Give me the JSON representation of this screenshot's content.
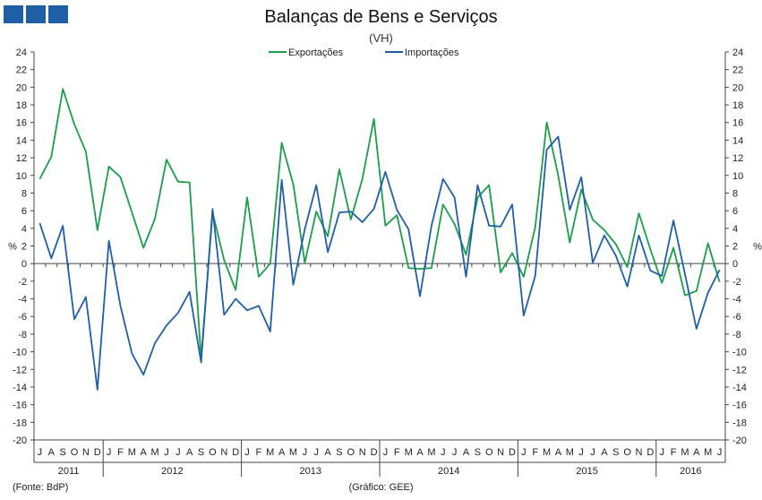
{
  "header": {
    "title": "Balanças de Bens e Serviços",
    "subtitle": "(VH)"
  },
  "logo": {
    "color": "#1f5fa6"
  },
  "footer": {
    "source": "(Fonte: BdP)",
    "chart_credit": "(Gráfico: GEE)"
  },
  "chart_data": {
    "type": "line",
    "title": "Balanças de Bens e Serviços",
    "subtitle": "(VH)",
    "ylabel_left": "%",
    "ylabel_right": "%",
    "ylim": [
      -20,
      24
    ],
    "yticks": [
      -20,
      -18,
      -16,
      -14,
      -12,
      -10,
      -8,
      -6,
      -4,
      -2,
      0,
      2,
      4,
      6,
      8,
      10,
      12,
      14,
      16,
      18,
      20,
      22,
      24
    ],
    "grid": false,
    "legend_position": "top-center",
    "x_months": [
      "J",
      "A",
      "S",
      "O",
      "N",
      "D",
      "J",
      "F",
      "M",
      "A",
      "M",
      "J",
      "J",
      "A",
      "S",
      "O",
      "N",
      "D",
      "J",
      "F",
      "M",
      "A",
      "M",
      "J",
      "J",
      "A",
      "S",
      "O",
      "N",
      "D",
      "J",
      "F",
      "M",
      "A",
      "M",
      "J",
      "J",
      "A",
      "S",
      "O",
      "N",
      "D",
      "J",
      "F",
      "M",
      "A",
      "M",
      "J",
      "J",
      "A",
      "S",
      "O",
      "N",
      "D",
      "J",
      "F",
      "M",
      "A",
      "M",
      "J"
    ],
    "year_groups": [
      {
        "label": "2011",
        "months": 6
      },
      {
        "label": "2012",
        "months": 12
      },
      {
        "label": "2013",
        "months": 12
      },
      {
        "label": "2014",
        "months": 12
      },
      {
        "label": "2015",
        "months": 12
      },
      {
        "label": "2016",
        "months": 6
      }
    ],
    "series": [
      {
        "name": "Exportações",
        "color": "#1a9e4a",
        "values": [
          9.6,
          12.1,
          19.8,
          15.8,
          12.7,
          3.8,
          11.0,
          9.8,
          5.8,
          1.8,
          5.1,
          11.8,
          9.3,
          9.2,
          -10.8,
          5.8,
          0.4,
          -3.0,
          7.5,
          -1.5,
          0.0,
          13.7,
          9.0,
          0.1,
          5.9,
          3.1,
          10.7,
          5.0,
          9.6,
          16.4,
          4.3,
          5.5,
          -0.5,
          -0.6,
          -0.5,
          6.7,
          4.5,
          1.0,
          7.5,
          8.9,
          -1.0,
          1.2,
          -1.5,
          4.1,
          16.0,
          10.0,
          2.4,
          8.4,
          5.0,
          3.8,
          2.2,
          -0.4,
          5.7,
          1.6,
          -2.2,
          1.8,
          -3.6,
          -3.1,
          2.3,
          -2.1
        ]
      },
      {
        "name": "Importações",
        "color": "#1f5fa6",
        "values": [
          4.6,
          0.6,
          4.3,
          -6.3,
          -3.8,
          -14.3,
          2.6,
          -4.8,
          -10.2,
          -12.6,
          -9.0,
          -7.0,
          -5.6,
          -3.2,
          -11.2,
          6.2,
          -5.8,
          -4.0,
          -5.3,
          -4.8,
          -7.7,
          9.5,
          -2.4,
          3.9,
          8.9,
          1.3,
          5.8,
          5.9,
          4.7,
          6.2,
          10.4,
          6.1,
          3.9,
          -3.7,
          4.3,
          9.6,
          7.5,
          -1.5,
          8.9,
          4.3,
          4.2,
          6.7,
          -5.9,
          -1.4,
          12.9,
          14.4,
          6.1,
          9.8,
          0.1,
          3.2,
          0.9,
          -2.6,
          3.2,
          -0.8,
          -1.4,
          4.9,
          -1.2,
          -7.4,
          -3.3,
          -0.7
        ]
      }
    ]
  }
}
